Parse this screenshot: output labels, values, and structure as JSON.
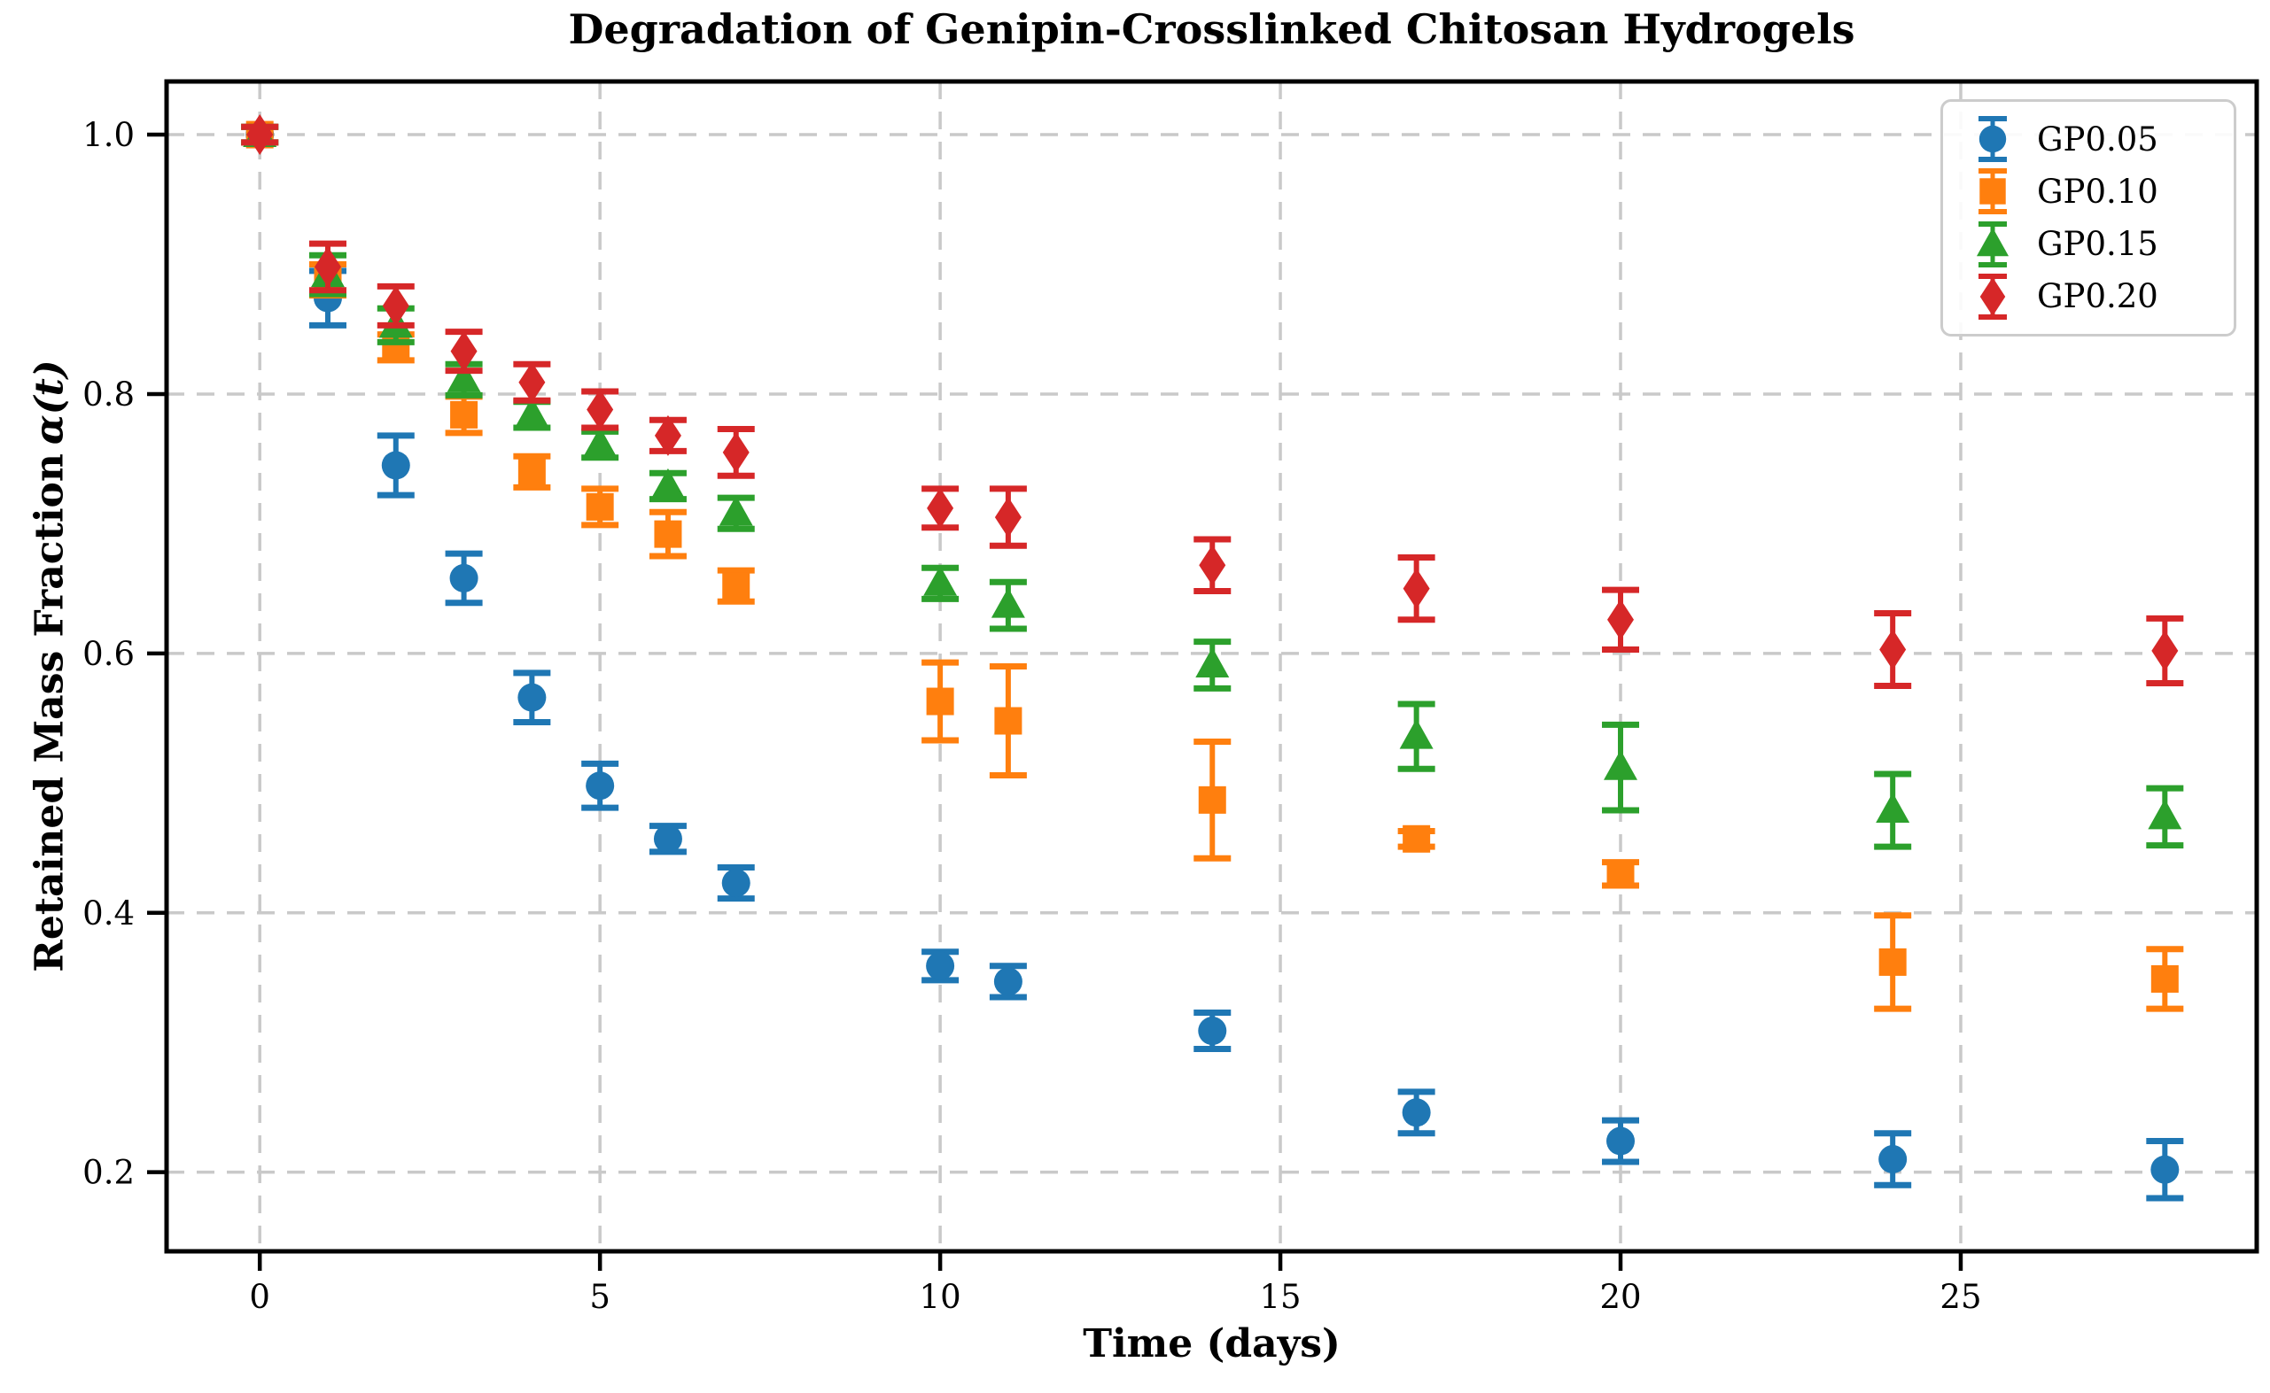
{
  "chart_data": {
    "type": "scatter",
    "title": "Degradation of Genipin-Crosslinked Chitosan Hydrogels",
    "xlabel": "Time (days)",
    "ylabel": "Retained Mass Fraction α(t)",
    "ylabel_prefix": "Retained Mass Fraction",
    "ylabel_math": "α(t)",
    "x": [
      0,
      1,
      2,
      3,
      4,
      5,
      6,
      7,
      10,
      11,
      14,
      17,
      20,
      24,
      28
    ],
    "series": [
      {
        "name": "GP0.05",
        "marker": "circle",
        "color": "#1f77b4",
        "values": [
          1.0,
          0.874,
          0.745,
          0.658,
          0.566,
          0.498,
          0.457,
          0.423,
          0.359,
          0.347,
          0.309,
          0.246,
          0.224,
          0.21,
          0.202
        ],
        "errors": [
          0.006,
          0.021,
          0.023,
          0.019,
          0.019,
          0.017,
          0.01,
          0.012,
          0.011,
          0.012,
          0.014,
          0.016,
          0.016,
          0.02,
          0.022
        ]
      },
      {
        "name": "GP0.10",
        "marker": "square",
        "color": "#ff7f0e",
        "values": [
          1.0,
          0.888,
          0.836,
          0.784,
          0.74,
          0.713,
          0.692,
          0.652,
          0.563,
          0.548,
          0.487,
          0.457,
          0.43,
          0.362,
          0.349
        ],
        "errors": [
          0.006,
          0.012,
          0.01,
          0.014,
          0.012,
          0.014,
          0.017,
          0.012,
          0.03,
          0.042,
          0.045,
          0.006,
          0.009,
          0.036,
          0.023
        ]
      },
      {
        "name": "GP0.15",
        "marker": "triangle",
        "color": "#2ca02c",
        "values": [
          1.0,
          0.892,
          0.853,
          0.811,
          0.784,
          0.761,
          0.729,
          0.708,
          0.654,
          0.637,
          0.591,
          0.536,
          0.512,
          0.479,
          0.474
        ],
        "errors": [
          0.006,
          0.015,
          0.013,
          0.012,
          0.01,
          0.01,
          0.01,
          0.012,
          0.012,
          0.018,
          0.018,
          0.025,
          0.033,
          0.028,
          0.022
        ]
      },
      {
        "name": "GP0.20",
        "marker": "diamond",
        "color": "#d62728",
        "values": [
          1.0,
          0.898,
          0.868,
          0.833,
          0.809,
          0.788,
          0.768,
          0.755,
          0.712,
          0.705,
          0.668,
          0.65,
          0.626,
          0.603,
          0.602
        ],
        "errors": [
          0.006,
          0.018,
          0.015,
          0.015,
          0.014,
          0.014,
          0.012,
          0.018,
          0.015,
          0.022,
          0.02,
          0.024,
          0.023,
          0.028,
          0.025
        ]
      }
    ],
    "xticks": [
      0,
      5,
      10,
      15,
      20,
      25
    ],
    "yticks": [
      1.0,
      0.8,
      0.6,
      0.4,
      0.2
    ],
    "xlim": [
      -1.37,
      29.35
    ],
    "ylim": [
      0.139,
      1.041
    ],
    "grid": true,
    "grid_style": "dashed",
    "legend_position": "upper-right",
    "legend_labels": [
      "GP0.05",
      "GP0.10",
      "GP0.15",
      "GP0.20"
    ]
  },
  "style": {
    "grid_color": "#c9c9c9",
    "spine_color": "#000000",
    "background": "#ffffff"
  }
}
